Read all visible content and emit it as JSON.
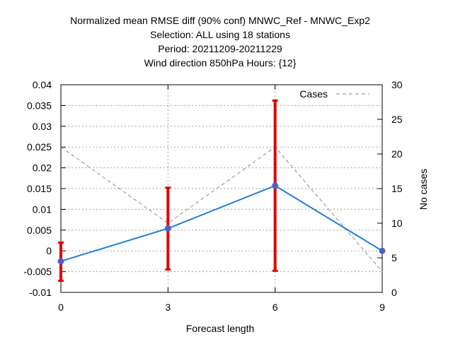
{
  "chart_data": {
    "type": "line",
    "title_lines": [
      "Normalized mean RMSE diff (90% conf) MNWC_Ref - MNWC_Exp2",
      "Selection: ALL using    18 stations",
      "Period: 20211209-20211229",
      "Wind direction 850hPa   Hours: {12}"
    ],
    "xlabel": "Forecast length",
    "ylabel": "",
    "y2label": "No cases",
    "x": [
      0,
      3,
      6,
      9
    ],
    "xticks": [
      "0",
      "3",
      "6",
      "9"
    ],
    "xlim": [
      0,
      9
    ],
    "ylim": [
      -0.01,
      0.04
    ],
    "yticks": [
      "-0.01",
      "-0.005",
      "0",
      "0.005",
      "0.01",
      "0.015",
      "0.02",
      "0.025",
      "0.03",
      "0.035",
      "0.04"
    ],
    "y2lim": [
      0,
      30
    ],
    "y2ticks": [
      "0",
      "5",
      "10",
      "15",
      "20",
      "25",
      "30"
    ],
    "grid": true,
    "legend_position": "top-right",
    "series": [
      {
        "values": [
          -0.0025,
          0.0054,
          0.0157,
          0.0
        ],
        "err_low": [
          -0.0072,
          -0.0045,
          -0.0048,
          0.0
        ],
        "err_high": [
          0.002,
          0.0152,
          0.0362,
          0.0
        ],
        "color": "#1f7fd6",
        "errcolor": "#e00000",
        "marker_color": "#4f5fc8"
      },
      {
        "name": "Cases",
        "axis": "y2",
        "values": [
          21,
          10,
          21,
          3
        ],
        "color": "#888888",
        "dashed": true
      }
    ]
  }
}
